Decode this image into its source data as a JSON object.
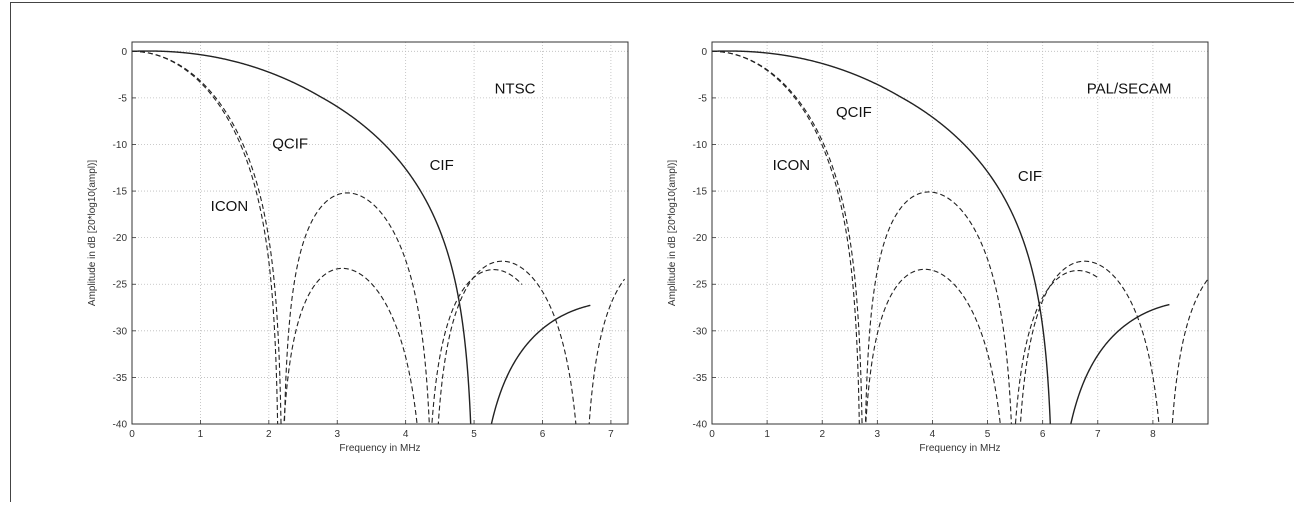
{
  "chart_data": [
    {
      "type": "line",
      "xlabel": "Frequency in MHz",
      "ylabel": "Amplitude in dB [20*log10(ampl)]",
      "xlim": [
        0,
        7.25
      ],
      "ylim": [
        -40,
        1
      ],
      "xticks": [
        0,
        1,
        2,
        3,
        4,
        5,
        6,
        7
      ],
      "yticks": [
        0,
        -5,
        -10,
        -15,
        -20,
        -25,
        -30,
        -35,
        -40
      ],
      "grid": true,
      "annotations": [
        {
          "text": "NTSC",
          "x": 5.3,
          "y": -4
        },
        {
          "text": "QCIF",
          "x": 2.05,
          "y": -9.9
        },
        {
          "text": "CIF",
          "x": 4.35,
          "y": -12.2
        },
        {
          "text": "ICON",
          "x": 1.15,
          "y": -16.6
        }
      ],
      "series": [
        {
          "name": "CIF",
          "style": "solid",
          "main_lobe_zero_mhz": 5.0,
          "peak_db": 0.4,
          "side_lobe_peaks": [
            {
              "x": 5.8,
              "y": -27.1
            }
          ],
          "x_end": 6.7
        },
        {
          "name": "QCIF",
          "style": "dashed",
          "main_lobe_zero_mhz": 2.2,
          "peak_db": 0,
          "side_lobe_peaks": [
            {
              "x": 3.0,
              "y": -15.4
            },
            {
              "x": 5.2,
              "y": -22.6
            }
          ],
          "x_end": 7.2
        },
        {
          "name": "ICON",
          "style": "dashed",
          "main_lobe_zero_mhz": 2.15,
          "peak_db": 0,
          "side_lobe_peaks": [
            {
              "x": 4.95,
              "y": -23.5
            }
          ],
          "x_end": 5.7
        }
      ]
    },
    {
      "type": "line",
      "xlabel": "Frequency in MHz",
      "ylabel": "Amplitude in dB [20*log10(ampl)]",
      "xlim": [
        0,
        9
      ],
      "ylim": [
        -40,
        1
      ],
      "xticks": [
        0,
        1,
        2,
        3,
        4,
        5,
        6,
        7,
        8
      ],
      "yticks": [
        0,
        -5,
        -10,
        -15,
        -20,
        -25,
        -30,
        -35,
        -40
      ],
      "grid": true,
      "annotations": [
        {
          "text": "PAL/SECAM",
          "x": 6.8,
          "y": -4
        },
        {
          "text": "QCIF",
          "x": 2.25,
          "y": -6.5
        },
        {
          "text": "ICON",
          "x": 1.1,
          "y": -12.2
        },
        {
          "text": "CIF",
          "x": 5.55,
          "y": -13.4
        }
      ],
      "series": [
        {
          "name": "CIF",
          "style": "solid",
          "main_lobe_zero_mhz": 6.2,
          "peak_db": 0.4,
          "side_lobe_peaks": [
            {
              "x": 7.2,
              "y": -27
            }
          ],
          "x_end": 8.3
        },
        {
          "name": "QCIF",
          "style": "dashed",
          "main_lobe_zero_mhz": 2.75,
          "peak_db": 0,
          "side_lobe_peaks": [
            {
              "x": 3.7,
              "y": -15.3
            },
            {
              "x": 6.4,
              "y": -22.6
            }
          ],
          "x_end": 9
        },
        {
          "name": "ICON",
          "style": "dashed",
          "main_lobe_zero_mhz": 2.7,
          "peak_db": 0,
          "side_lobe_peaks": [
            {
              "x": 6.1,
              "y": -23.6
            }
          ],
          "x_end": 7.0
        }
      ]
    }
  ]
}
